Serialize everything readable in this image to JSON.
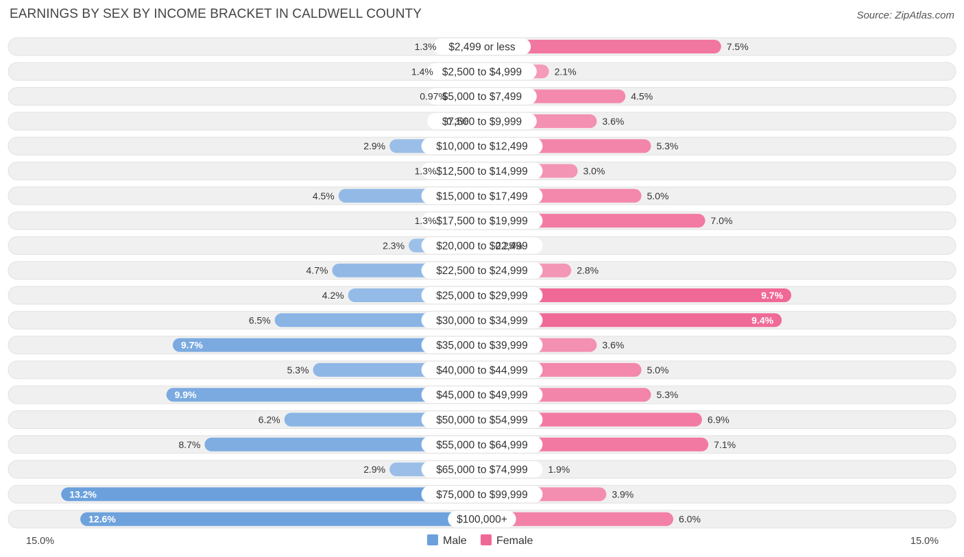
{
  "colors": {
    "male": "#6ba0dc",
    "male_light": "#a7c7ec",
    "female": "#f06896",
    "female_light": "#f6a8c3",
    "row_bg": "#f0f0f0",
    "row_border": "#e2e2e2"
  },
  "chart_data": {
    "type": "bar",
    "orientation": "horizontal-diverging",
    "title": "EARNINGS BY SEX BY INCOME BRACKET IN CALDWELL COUNTY",
    "source": "Source: ZipAtlas.com",
    "axis_min_label": "15.0%",
    "axis_max_label": "15.0%",
    "xlim": [
      -15,
      15
    ],
    "legend": [
      "Male",
      "Female"
    ],
    "legend_position": "bottom-center",
    "categories": [
      "$2,499 or less",
      "$2,500 to $4,999",
      "$5,000 to $7,499",
      "$7,500 to $9,999",
      "$10,000 to $12,499",
      "$12,500 to $14,999",
      "$15,000 to $17,499",
      "$17,500 to $19,999",
      "$20,000 to $22,499",
      "$22,500 to $24,999",
      "$25,000 to $29,999",
      "$30,000 to $34,999",
      "$35,000 to $39,999",
      "$40,000 to $44,999",
      "$45,000 to $49,999",
      "$50,000 to $54,999",
      "$55,000 to $64,999",
      "$65,000 to $74,999",
      "$75,000 to $99,999",
      "$100,000+"
    ],
    "series": [
      {
        "name": "Male",
        "values": [
          1.3,
          1.4,
          0.97,
          0.3,
          2.9,
          1.3,
          4.5,
          1.3,
          2.3,
          4.7,
          4.2,
          6.5,
          9.7,
          5.3,
          9.9,
          6.2,
          8.7,
          2.9,
          13.2,
          12.6
        ],
        "labels": [
          "1.3%",
          "1.4%",
          "0.97%",
          "0.3%",
          "2.9%",
          "1.3%",
          "4.5%",
          "1.3%",
          "2.3%",
          "4.7%",
          "4.2%",
          "6.5%",
          "9.7%",
          "5.3%",
          "9.9%",
          "6.2%",
          "8.7%",
          "2.9%",
          "13.2%",
          "12.6%"
        ]
      },
      {
        "name": "Female",
        "values": [
          7.5,
          2.1,
          4.5,
          3.6,
          5.3,
          3.0,
          5.0,
          7.0,
          0.25,
          2.8,
          9.7,
          9.4,
          3.6,
          5.0,
          5.3,
          6.9,
          7.1,
          1.9,
          3.9,
          6.0
        ],
        "labels": [
          "7.5%",
          "2.1%",
          "4.5%",
          "3.6%",
          "5.3%",
          "3.0%",
          "5.0%",
          "7.0%",
          "0.25%",
          "2.8%",
          "9.7%",
          "9.4%",
          "3.6%",
          "5.0%",
          "5.3%",
          "6.9%",
          "7.1%",
          "1.9%",
          "3.9%",
          "6.0%"
        ]
      }
    ]
  }
}
